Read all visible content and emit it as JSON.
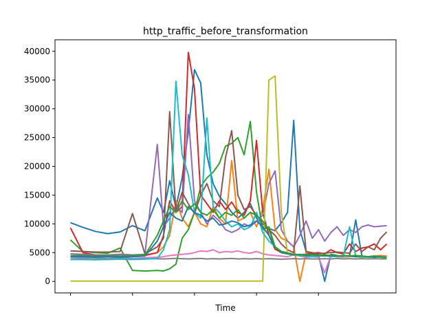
{
  "chart_data": {
    "type": "line",
    "title": "http_traffic_before_transformation",
    "xlabel": "Time",
    "ylabel": "",
    "xlim": [
      -5,
      105
    ],
    "ylim": [
      -2000,
      42000
    ],
    "y_ticks": [
      0,
      5000,
      10000,
      15000,
      20000,
      25000,
      30000,
      35000,
      40000
    ],
    "y_tick_labels": [
      "0",
      "5000",
      "10000",
      "15000",
      "20000",
      "25000",
      "30000",
      "35000",
      "40000"
    ],
    "x_ticks": [
      0,
      20,
      40,
      60,
      80
    ],
    "x_tick_labels": [
      "",
      "",
      "",
      "",
      ""
    ],
    "grid": false,
    "legend": "none",
    "x": [
      0,
      4,
      8,
      12,
      16,
      20,
      24,
      28,
      30,
      32,
      34,
      36,
      38,
      40,
      42,
      44,
      46,
      48,
      50,
      52,
      54,
      56,
      58,
      60,
      62,
      64,
      66,
      68,
      70,
      72,
      74,
      76,
      78,
      80,
      82,
      84,
      86,
      88,
      90,
      92,
      94,
      96,
      98,
      100,
      102
    ],
    "series": [
      {
        "color": "#1f77b4",
        "values": [
          10200,
          9400,
          8700,
          8300,
          8600,
          9700,
          8800,
          14500,
          12000,
          17500,
          12800,
          18000,
          26000,
          36800,
          34500,
          22000,
          17000,
          14800,
          13500,
          12000,
          11000,
          12000,
          13500,
          11000,
          9500,
          9200,
          8800,
          10200,
          12000,
          28000,
          9000,
          5200,
          4800,
          4600,
          0,
          4700,
          4500,
          4300,
          4400,
          10700,
          4400,
          4200,
          4300,
          4200,
          4100
        ]
      },
      {
        "color": "#ff7f0e",
        "values": [
          4500,
          4400,
          4300,
          4300,
          4400,
          4500,
          4600,
          5000,
          6000,
          8000,
          14000,
          11000,
          9500,
          12000,
          10000,
          9500,
          13000,
          11000,
          10000,
          21000,
          10500,
          11000,
          12000,
          9500,
          12500,
          19500,
          9000,
          7500,
          7000,
          6000,
          0,
          5000,
          4600,
          4500,
          4600,
          4500,
          4400,
          4300,
          4400,
          4500,
          4400,
          4300,
          4400,
          4500,
          4400
        ]
      },
      {
        "color": "#2ca02c",
        "values": [
          7200,
          5200,
          5000,
          4900,
          5800,
          1900,
          1800,
          1900,
          1800,
          2200,
          3000,
          7500,
          9000,
          12000,
          16500,
          18000,
          19000,
          20500,
          23500,
          24000,
          25000,
          22000,
          27800,
          15500,
          9000,
          9500,
          6000,
          5200,
          5000,
          4700,
          4600,
          4500,
          4600,
          4400,
          4500,
          4400,
          4300,
          4400,
          4500,
          4300,
          4200,
          4300,
          4400,
          4200,
          4100
        ]
      },
      {
        "color": "#d62728",
        "values": [
          9300,
          5000,
          4600,
          4500,
          4700,
          4600,
          4500,
          5000,
          8000,
          14000,
          12000,
          13000,
          39800,
          33500,
          15000,
          13500,
          12000,
          14000,
          12500,
          13800,
          12000,
          11500,
          14000,
          24500,
          12000,
          8000,
          5600,
          5000,
          4800,
          4700,
          4600,
          4700,
          4900,
          5000,
          4800,
          5500,
          5000,
          4800,
          6500,
          5200,
          5800,
          6000,
          6500,
          5500,
          6500
        ]
      },
      {
        "color": "#9467bd",
        "values": [
          4800,
          4700,
          4600,
          4600,
          4700,
          4600,
          4700,
          23800,
          9500,
          11000,
          13000,
          12000,
          29000,
          14000,
          12000,
          10000,
          11500,
          10500,
          9000,
          8500,
          9000,
          10000,
          9500,
          10500,
          11500,
          17000,
          19200,
          9000,
          7000,
          6000,
          8000,
          10500,
          7500,
          9000,
          7000,
          8500,
          9500,
          8000,
          9000,
          8500,
          9500,
          9800,
          9500,
          9600,
          9700
        ]
      },
      {
        "color": "#8c564b",
        "values": [
          5300,
          5200,
          5100,
          5100,
          5200,
          11800,
          4800,
          6000,
          7500,
          29500,
          12000,
          15500,
          13500,
          11800,
          15000,
          17000,
          14000,
          13000,
          21500,
          26200,
          15000,
          12500,
          13000,
          11500,
          10000,
          9000,
          8000,
          6500,
          5500,
          5000,
          16600,
          5200,
          5000,
          4800,
          4900,
          5000,
          5100,
          5000,
          4900,
          6500,
          5200,
          6000,
          5500,
          7500,
          8600
        ]
      },
      {
        "color": "#e377c2",
        "values": [
          4200,
          4100,
          4100,
          4000,
          4100,
          4000,
          4100,
          4200,
          4300,
          4500,
          4600,
          4700,
          4800,
          5000,
          5300,
          5200,
          5500,
          5000,
          5200,
          5100,
          5300,
          5000,
          4900,
          5200,
          4800,
          4600,
          4500,
          4400,
          4300,
          4600,
          4400,
          4200,
          4300,
          4200,
          1500,
          4500,
          4300,
          4200,
          4300,
          4400,
          4200,
          4300,
          4400,
          4200,
          4300
        ]
      },
      {
        "color": "#7f7f7f",
        "values": [
          3900,
          3900,
          3850,
          3900,
          3900,
          3850,
          3900,
          3950,
          3900,
          3950,
          4000,
          3950,
          3900,
          3950,
          4000,
          3900,
          3950,
          3900,
          3950,
          4000,
          3900,
          3950,
          3900,
          3950,
          3900,
          3950,
          3900,
          3850,
          3900,
          3950,
          3900,
          3950,
          3900,
          3900,
          3950,
          3900,
          4000,
          3900,
          3950,
          3900,
          3950,
          3900,
          3950,
          3900,
          3900
        ]
      },
      {
        "color": "#bcbd22",
        "values": [
          50,
          50,
          50,
          50,
          50,
          50,
          50,
          50,
          50,
          50,
          50,
          50,
          50,
          50,
          50,
          50,
          50,
          50,
          50,
          50,
          50,
          50,
          50,
          50,
          50,
          35000,
          35700,
          12000,
          5000,
          4600,
          4500,
          4400,
          4500,
          4400,
          4500,
          4300,
          4400,
          4300,
          4400,
          4300,
          4200,
          4300,
          4200,
          4300,
          4200
        ]
      },
      {
        "color": "#17becf",
        "values": [
          3800,
          3800,
          3750,
          3800,
          3850,
          3800,
          3850,
          4000,
          5500,
          9000,
          34800,
          22000,
          18500,
          12000,
          11000,
          28400,
          13000,
          12000,
          10500,
          9500,
          10000,
          9000,
          9500,
          12000,
          8500,
          7000,
          6000,
          5200,
          4800,
          4600,
          4500,
          4400,
          4300,
          4400,
          4500,
          4300,
          4400,
          4300,
          9500,
          4400,
          4300,
          4200,
          4300,
          4200,
          4100
        ]
      },
      {
        "color": "#1f77b4",
        "values": [
          4300,
          4300,
          4200,
          4300,
          4200,
          4300,
          4400,
          7000,
          9500,
          12000,
          11000,
          10500,
          13000,
          12000,
          11500,
          10500,
          11000,
          9800,
          10000,
          10500,
          10200,
          9500,
          9800,
          10500,
          9500,
          8000,
          6000,
          5000,
          4800,
          4600,
          4700,
          4500,
          4600,
          4500,
          4400,
          4500,
          4400,
          4500,
          4400,
          4300,
          4400,
          4300,
          4200,
          4300,
          4200
        ]
      },
      {
        "color": "#2ca02c",
        "values": [
          4500,
          4500,
          4400,
          4500,
          4400,
          4500,
          4600,
          8000,
          10500,
          13000,
          12000,
          14000,
          12500,
          13500,
          12000,
          11500,
          12500,
          11000,
          12000,
          11500,
          12500,
          11000,
          12000,
          11500,
          10500,
          9000,
          6000,
          5200,
          4900,
          4700,
          4600,
          4700,
          4600,
          4500,
          4600,
          4500,
          4400,
          4500,
          4400,
          4500,
          4400,
          4300,
          4400,
          4300,
          4200
        ]
      }
    ]
  }
}
